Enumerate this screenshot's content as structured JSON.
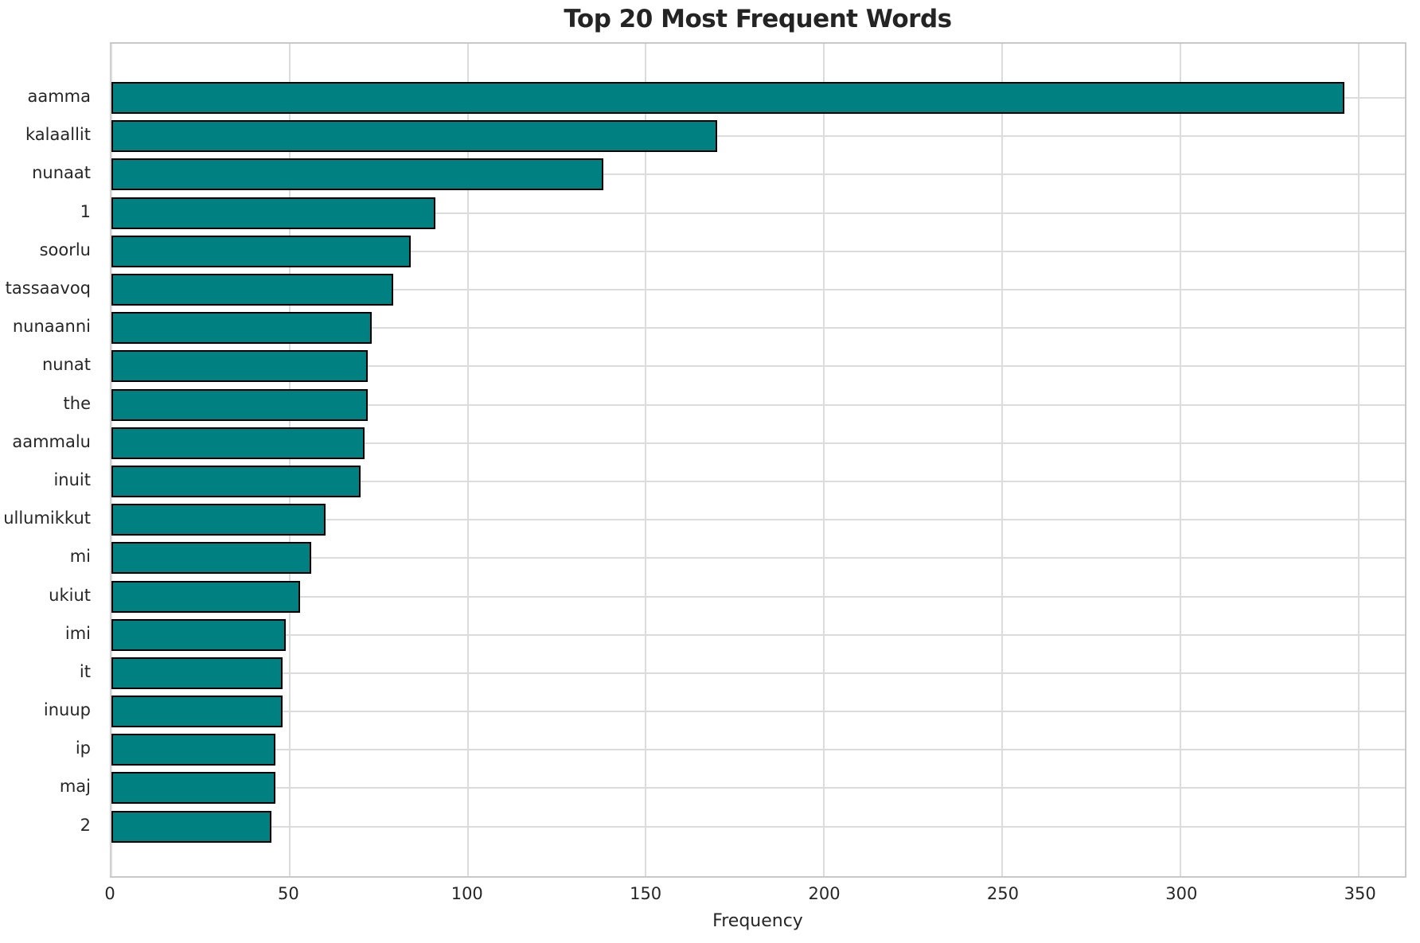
{
  "title": "Top 20 Most Frequent Words",
  "colors": {
    "bar_fill": "#008080",
    "bar_edge": "#000000",
    "grid": "#dcdcdc",
    "spine": "#c9c9c9",
    "text": "#262626",
    "background": "#ffffff"
  },
  "chart_data": {
    "type": "bar",
    "orientation": "horizontal",
    "title": "Top 20 Most Frequent Words",
    "xlabel": "Frequency",
    "ylabel": "",
    "categories": [
      "aamma",
      "kalaallit",
      "nunaat",
      "1",
      "soorlu",
      "tassaavoq",
      "nunaanni",
      "nunat",
      "the",
      "aammalu",
      "inuit",
      "ullumikkut",
      "mi",
      "ukiut",
      "imi",
      "it",
      "inuup",
      "ip",
      "maj",
      "2"
    ],
    "values": [
      346,
      170,
      138,
      91,
      84,
      79,
      73,
      72,
      72,
      71,
      70,
      60,
      56,
      53,
      49,
      48,
      48,
      46,
      46,
      45
    ],
    "xlim": [
      0,
      363
    ],
    "xticks": [
      0,
      50,
      100,
      150,
      200,
      250,
      300,
      350
    ],
    "grid": true,
    "legend": false
  }
}
